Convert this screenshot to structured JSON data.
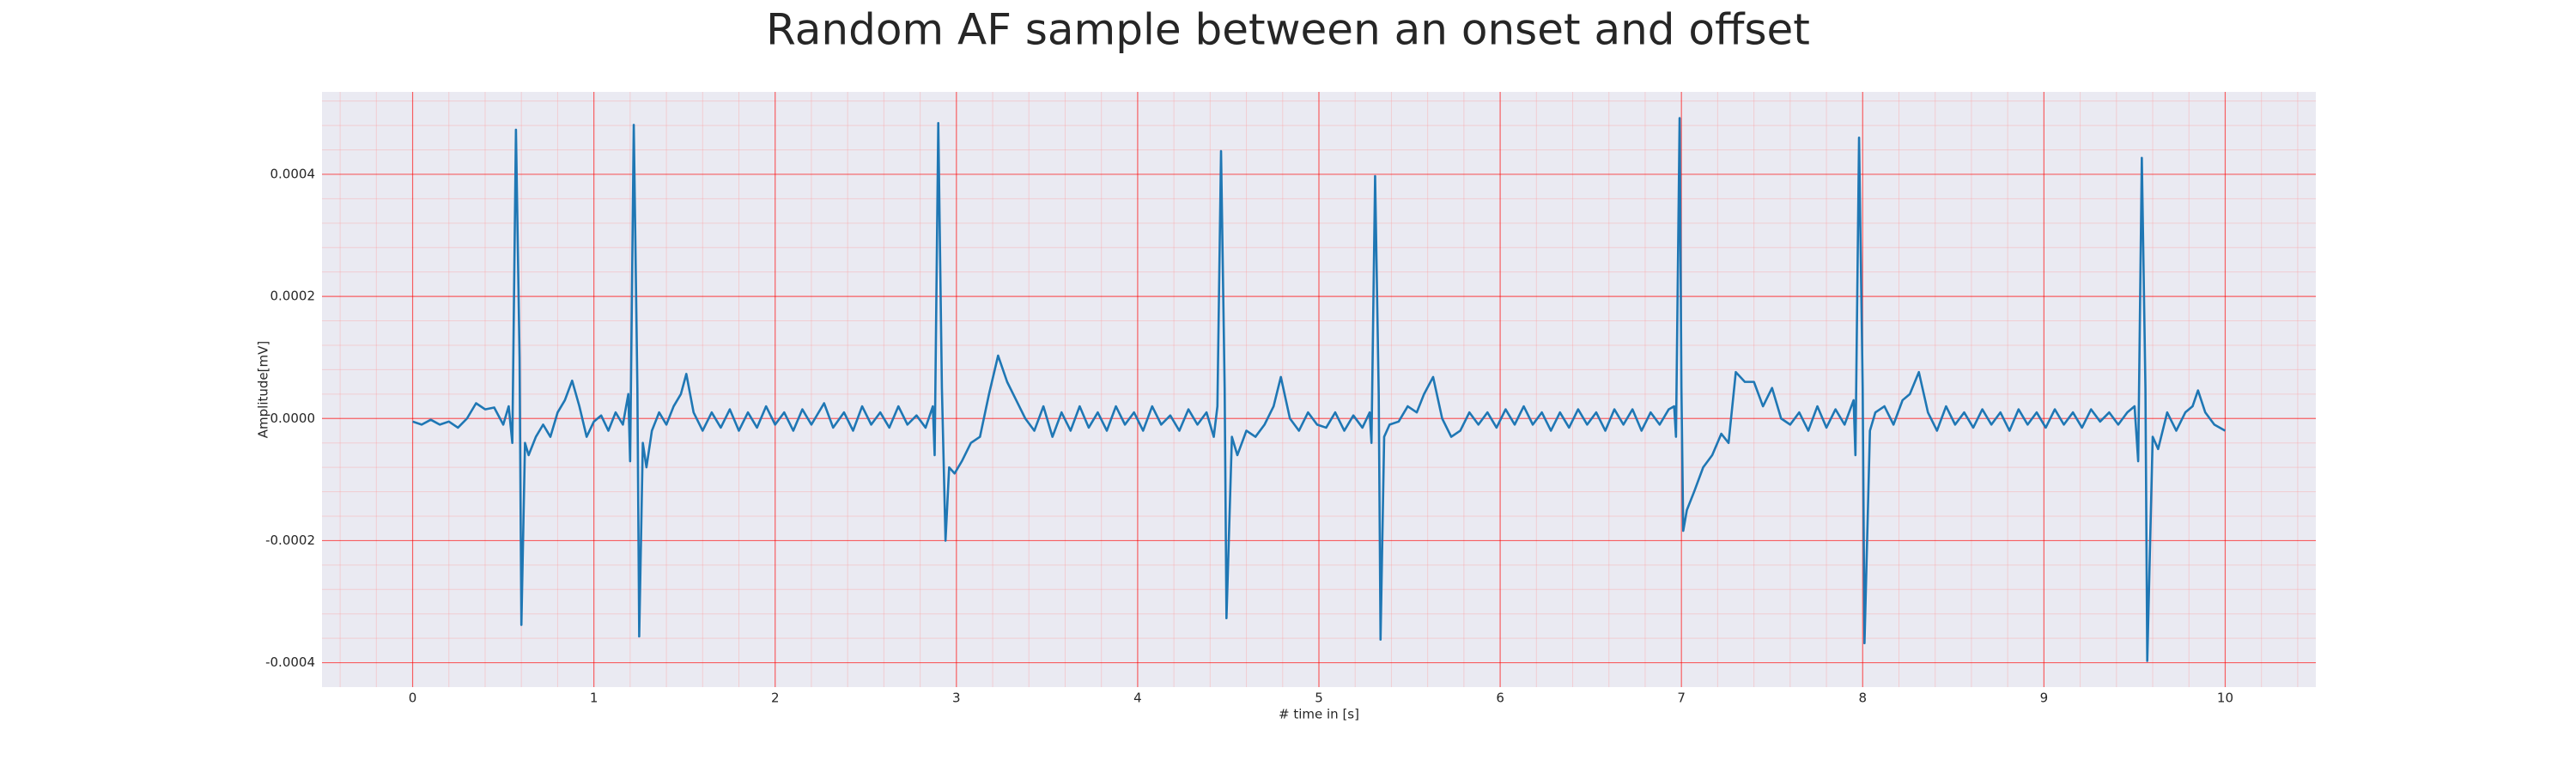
{
  "chart_data": {
    "type": "line",
    "title": "Random AF sample between an onset and offset",
    "xlabel": "# time in [s]",
    "ylabel": "Amplitude[mV]",
    "color": "#1f77b4",
    "xlim": [
      -0.5,
      10.5
    ],
    "ylim": [
      -0.00044,
      0.000535
    ],
    "xticks": [
      0,
      1,
      2,
      3,
      4,
      5,
      6,
      7,
      8,
      9,
      10
    ],
    "yticks": [
      -0.0004,
      -0.0002,
      {
        "value": 0,
        "label": "0.0000"
      },
      0.0002,
      0.0004
    ],
    "grid": true,
    "minor_grid": true,
    "minor_divisions": 5,
    "x": [
      0.0,
      0.05,
      0.1,
      0.15,
      0.2,
      0.25,
      0.3,
      0.35,
      0.4,
      0.45,
      0.5,
      0.53,
      0.55,
      0.57,
      0.59,
      0.6,
      0.62,
      0.64,
      0.68,
      0.72,
      0.76,
      0.8,
      0.84,
      0.88,
      0.92,
      0.96,
      1.0,
      1.04,
      1.08,
      1.12,
      1.16,
      1.19,
      1.2,
      1.22,
      1.24,
      1.25,
      1.27,
      1.29,
      1.32,
      1.36,
      1.4,
      1.44,
      1.48,
      1.51,
      1.55,
      1.6,
      1.65,
      1.7,
      1.75,
      1.8,
      1.85,
      1.9,
      1.95,
      2.0,
      2.05,
      2.1,
      2.15,
      2.2,
      2.27,
      2.32,
      2.38,
      2.43,
      2.48,
      2.53,
      2.58,
      2.63,
      2.68,
      2.73,
      2.78,
      2.83,
      2.87,
      2.88,
      2.9,
      2.92,
      2.94,
      2.96,
      2.99,
      3.03,
      3.08,
      3.13,
      3.18,
      3.23,
      3.28,
      3.33,
      3.38,
      3.43,
      3.48,
      3.53,
      3.58,
      3.63,
      3.68,
      3.73,
      3.78,
      3.83,
      3.88,
      3.93,
      3.98,
      4.03,
      4.08,
      4.13,
      4.18,
      4.23,
      4.28,
      4.33,
      4.38,
      4.42,
      4.44,
      4.46,
      4.48,
      4.49,
      4.52,
      4.55,
      4.6,
      4.65,
      4.7,
      4.75,
      4.79,
      4.84,
      4.89,
      4.94,
      4.99,
      5.04,
      5.09,
      5.14,
      5.19,
      5.24,
      5.28,
      5.29,
      5.31,
      5.33,
      5.34,
      5.36,
      5.39,
      5.44,
      5.49,
      5.54,
      5.58,
      5.63,
      5.68,
      5.73,
      5.78,
      5.83,
      5.88,
      5.93,
      5.98,
      6.03,
      6.08,
      6.13,
      6.18,
      6.23,
      6.28,
      6.33,
      6.38,
      6.43,
      6.48,
      6.53,
      6.58,
      6.63,
      6.68,
      6.73,
      6.78,
      6.83,
      6.88,
      6.93,
      6.96,
      6.97,
      6.99,
      7.0,
      7.01,
      7.03,
      7.07,
      7.12,
      7.17,
      7.22,
      7.26,
      7.3,
      7.35,
      7.4,
      7.45,
      7.5,
      7.55,
      7.6,
      7.65,
      7.7,
      7.75,
      7.8,
      7.85,
      7.9,
      7.95,
      7.96,
      7.98,
      8.0,
      8.01,
      8.04,
      8.07,
      8.12,
      8.17,
      8.22,
      8.26,
      8.31,
      8.36,
      8.41,
      8.46,
      8.51,
      8.56,
      8.61,
      8.66,
      8.71,
      8.76,
      8.81,
      8.86,
      8.91,
      8.96,
      9.01,
      9.06,
      9.11,
      9.16,
      9.21,
      9.26,
      9.31,
      9.36,
      9.41,
      9.46,
      9.5,
      9.52,
      9.54,
      9.56,
      9.57,
      9.6,
      9.63,
      9.68,
      9.73,
      9.78,
      9.82,
      9.85,
      9.89,
      9.94,
      10.0
    ],
    "values": [
      -5e-06,
      -1e-05,
      -2e-06,
      -1e-05,
      -5e-06,
      -1.5e-05,
      0,
      2.5e-05,
      1.5e-05,
      1.8e-05,
      -1e-05,
      2e-05,
      -4e-05,
      0.000473,
      0.0001,
      -0.000338,
      -4e-05,
      -6e-05,
      -3e-05,
      -1e-05,
      -3e-05,
      1e-05,
      3e-05,
      6.2e-05,
      2e-05,
      -3e-05,
      -5e-06,
      5e-06,
      -2e-05,
      1e-05,
      -1e-05,
      4e-05,
      -7e-05,
      0.000481,
      5e-05,
      -0.000357,
      -4e-05,
      -8e-05,
      -2e-05,
      1e-05,
      -1e-05,
      2e-05,
      4e-05,
      7.3e-05,
      1e-05,
      -2e-05,
      1e-05,
      -1.5e-05,
      1.5e-05,
      -2e-05,
      1e-05,
      -1.5e-05,
      2e-05,
      -1e-05,
      1e-05,
      -2e-05,
      1.5e-05,
      -1e-05,
      2.5e-05,
      -1.5e-05,
      1e-05,
      -2e-05,
      2e-05,
      -1e-05,
      1e-05,
      -1.5e-05,
      2e-05,
      -1e-05,
      5e-06,
      -1.5e-05,
      2e-05,
      -6e-05,
      0.000484,
      5e-05,
      -0.0002,
      -8e-05,
      -9e-05,
      -7e-05,
      -4e-05,
      -3e-05,
      4e-05,
      0.000103,
      6e-05,
      3e-05,
      0,
      -2e-05,
      2e-05,
      -3e-05,
      1e-05,
      -2e-05,
      2e-05,
      -1.5e-05,
      1e-05,
      -2e-05,
      2e-05,
      -1e-05,
      1e-05,
      -2e-05,
      2e-05,
      -1e-05,
      5e-06,
      -2e-05,
      1.5e-05,
      -1e-05,
      1e-05,
      -3e-05,
      2e-05,
      0.000438,
      5e-05,
      -0.000327,
      -3e-05,
      -6e-05,
      -2e-05,
      -3e-05,
      -1e-05,
      2e-05,
      6.8e-05,
      0,
      -2e-05,
      1e-05,
      -1e-05,
      -1.5e-05,
      1e-05,
      -2e-05,
      5e-06,
      -1.5e-05,
      1e-05,
      -4e-05,
      0.000397,
      4e-05,
      -0.000362,
      -3e-05,
      -1e-05,
      -5e-06,
      2e-05,
      1e-05,
      4e-05,
      6.8e-05,
      0,
      -3e-05,
      -2e-05,
      1e-05,
      -1e-05,
      1e-05,
      -1.5e-05,
      1.5e-05,
      -1e-05,
      2e-05,
      -1e-05,
      1e-05,
      -2e-05,
      1e-05,
      -1.5e-05,
      1.5e-05,
      -1e-05,
      1e-05,
      -2e-05,
      1.5e-05,
      -1e-05,
      1.5e-05,
      -2e-05,
      1e-05,
      -1e-05,
      1.5e-05,
      2e-05,
      -3e-05,
      0.000492,
      5e-05,
      -0.000184,
      -0.00015,
      -0.00012,
      -8e-05,
      -6e-05,
      -2.5e-05,
      -4e-05,
      7.6e-05,
      6e-05,
      6e-05,
      2e-05,
      5e-05,
      0,
      -1e-05,
      1e-05,
      -2e-05,
      2e-05,
      -1.5e-05,
      1.5e-05,
      -1e-05,
      3e-05,
      -6e-05,
      0.00046,
      5e-05,
      -0.000368,
      -2e-05,
      1e-05,
      2e-05,
      -1e-05,
      3e-05,
      4e-05,
      7.6e-05,
      1e-05,
      -2e-05,
      2e-05,
      -1e-05,
      1e-05,
      -1.5e-05,
      1.5e-05,
      -1e-05,
      1e-05,
      -2e-05,
      1.5e-05,
      -1e-05,
      1e-05,
      -1.5e-05,
      1.5e-05,
      -1e-05,
      1e-05,
      -1.5e-05,
      1.5e-05,
      -5e-06,
      1e-05,
      -1e-05,
      1e-05,
      2e-05,
      -7e-05,
      0.000427,
      5e-05,
      -0.000397,
      -3e-05,
      -5e-05,
      1e-05,
      -2e-05,
      1e-05,
      2e-05,
      4.6e-05,
      1e-05,
      -1e-05,
      -2e-05
    ]
  }
}
